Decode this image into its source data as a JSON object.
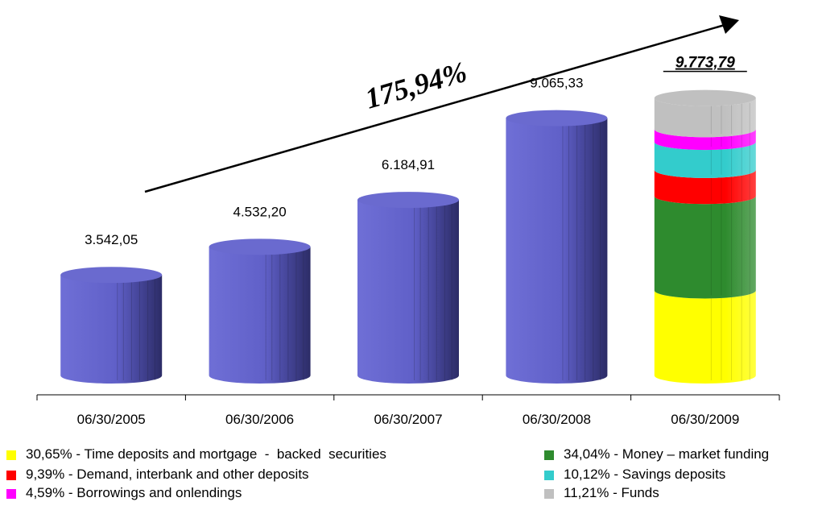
{
  "chart_data": {
    "type": "bar",
    "categories": [
      "06/30/2005",
      "06/30/2006",
      "06/30/2007",
      "06/30/2008",
      "06/30/2009"
    ],
    "values": [
      3542.05,
      4532.2,
      6184.91,
      9065.33,
      9773.79
    ],
    "value_labels": [
      "3.542,05",
      "4.532,20",
      "6.184,91",
      "9.065,33",
      "9.773,79"
    ],
    "ylim": [
      0,
      10000
    ],
    "growth_label": "175,94%",
    "bar_color": "#6666cc",
    "stacked_last_bar": {
      "category": "06/30/2009",
      "segments": [
        {
          "name": "Time deposits and mortgage - backed securities",
          "percent": 30.65,
          "color": "#ffff00"
        },
        {
          "name": "Money – market funding",
          "percent": 34.04,
          "color": "#2e8b2e"
        },
        {
          "name": "Demand, interbank and other deposits",
          "percent": 9.39,
          "color": "#ff0000"
        },
        {
          "name": "Savings deposits",
          "percent": 10.12,
          "color": "#33cccc"
        },
        {
          "name": "Borrowings and onlendings",
          "percent": 4.59,
          "color": "#ff00ff"
        },
        {
          "name": "Funds",
          "percent": 11.21,
          "color": "#c0c0c0"
        }
      ]
    }
  },
  "legend": [
    {
      "text": "30,65% - Time deposits and mortgage  -  backed  securities",
      "color": "#ffff00"
    },
    {
      "text": "34,04% - Money – market funding",
      "color": "#2e8b2e"
    },
    {
      "text": "9,39% - Demand, interbank and other deposits",
      "color": "#ff0000"
    },
    {
      "text": "10,12% - Savings deposits",
      "color": "#33cccc"
    },
    {
      "text": "4,59% - Borrowings and onlendings",
      "color": "#ff00ff"
    },
    {
      "text": "11,21% - Funds",
      "color": "#c0c0c0"
    }
  ]
}
